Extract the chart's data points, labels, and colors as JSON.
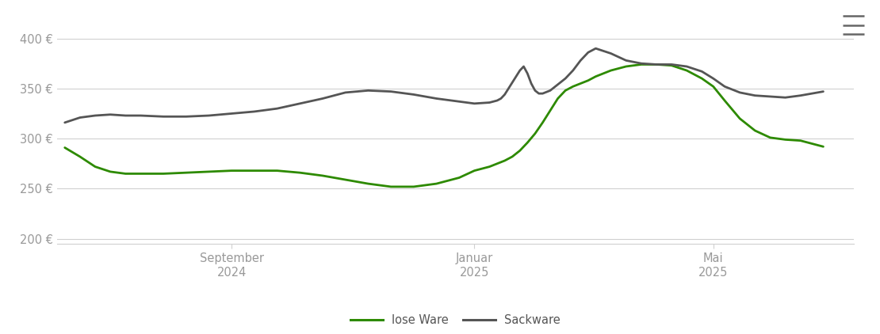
{
  "background_color": "#ffffff",
  "grid_color": "#d0d0d0",
  "ylim": [
    195,
    415
  ],
  "yticks": [
    200,
    250,
    300,
    350,
    400
  ],
  "ytick_labels": [
    "200 €",
    "250 €",
    "300 €",
    "350 €",
    "400 €"
  ],
  "xtick_positions": [
    0.22,
    0.54,
    0.855
  ],
  "xtick_labels": [
    "September\n2024",
    "Januar\n2025",
    "Mai\n2025"
  ],
  "lose_ware_color": "#2d8a00",
  "sackware_color": "#555555",
  "legend_labels": [
    "lose Ware",
    "Sackware"
  ],
  "lose_ware_x": [
    0.0,
    0.02,
    0.04,
    0.06,
    0.08,
    0.1,
    0.13,
    0.16,
    0.19,
    0.22,
    0.25,
    0.28,
    0.31,
    0.34,
    0.37,
    0.4,
    0.43,
    0.46,
    0.49,
    0.52,
    0.54,
    0.56,
    0.57,
    0.58,
    0.59,
    0.6,
    0.61,
    0.62,
    0.63,
    0.64,
    0.65,
    0.66,
    0.67,
    0.68,
    0.69,
    0.7,
    0.72,
    0.74,
    0.76,
    0.78,
    0.8,
    0.82,
    0.84,
    0.855,
    0.87,
    0.89,
    0.91,
    0.93,
    0.95,
    0.97,
    1.0
  ],
  "lose_ware_y": [
    291,
    282,
    272,
    267,
    265,
    265,
    265,
    266,
    267,
    268,
    268,
    268,
    266,
    263,
    259,
    255,
    252,
    252,
    255,
    261,
    268,
    272,
    275,
    278,
    282,
    288,
    296,
    305,
    316,
    328,
    340,
    348,
    352,
    355,
    358,
    362,
    368,
    372,
    374,
    374,
    373,
    368,
    360,
    352,
    338,
    320,
    308,
    301,
    299,
    298,
    292
  ],
  "sackware_x": [
    0.0,
    0.02,
    0.04,
    0.06,
    0.08,
    0.1,
    0.13,
    0.16,
    0.19,
    0.22,
    0.25,
    0.28,
    0.31,
    0.34,
    0.37,
    0.4,
    0.43,
    0.46,
    0.49,
    0.52,
    0.54,
    0.56,
    0.57,
    0.575,
    0.58,
    0.585,
    0.59,
    0.595,
    0.6,
    0.605,
    0.61,
    0.615,
    0.62,
    0.625,
    0.63,
    0.64,
    0.65,
    0.66,
    0.67,
    0.68,
    0.69,
    0.7,
    0.72,
    0.74,
    0.76,
    0.78,
    0.8,
    0.82,
    0.84,
    0.855,
    0.87,
    0.89,
    0.91,
    0.93,
    0.95,
    0.97,
    1.0
  ],
  "sackware_y": [
    316,
    321,
    323,
    324,
    323,
    323,
    322,
    322,
    323,
    325,
    327,
    330,
    335,
    340,
    346,
    348,
    347,
    344,
    340,
    337,
    335,
    336,
    338,
    340,
    344,
    350,
    356,
    362,
    368,
    372,
    365,
    355,
    348,
    345,
    345,
    348,
    354,
    360,
    368,
    378,
    386,
    390,
    385,
    378,
    375,
    374,
    374,
    372,
    367,
    360,
    352,
    346,
    343,
    342,
    341,
    343,
    347
  ]
}
